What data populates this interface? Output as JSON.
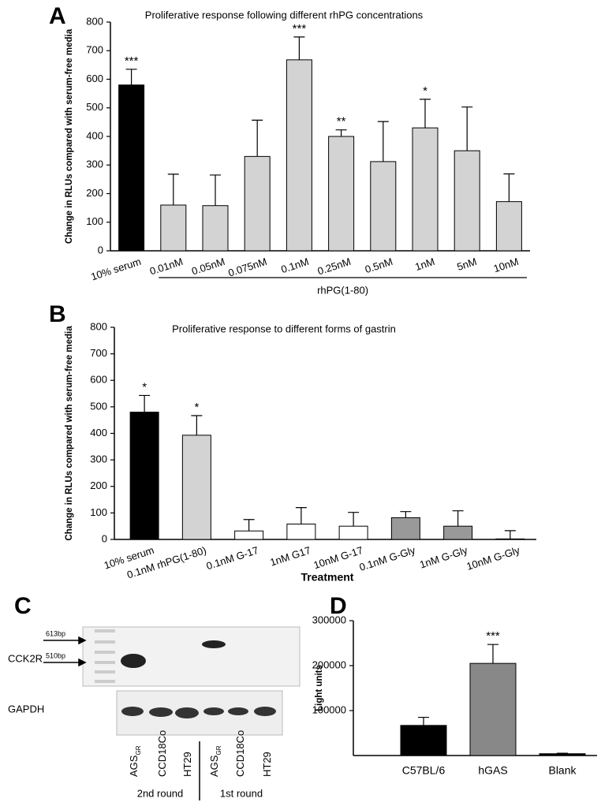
{
  "chart_data": [
    {
      "type": "bar",
      "panel": "A",
      "title": "Proliferative response following different rhPG concentrations",
      "ylabel": "Change in RLUs compared with serum-free media",
      "categories": [
        "10% serum",
        "0.01nM",
        "0.05nM",
        "0.075nM",
        "0.1nM",
        "0.25nM",
        "0.5nM",
        "1nM",
        "5nM",
        "10nM"
      ],
      "values": [
        580,
        160,
        158,
        330,
        668,
        400,
        312,
        430,
        350,
        172
      ],
      "errors": [
        55,
        108,
        107,
        127,
        80,
        23,
        140,
        100,
        153,
        97
      ],
      "colors": [
        "#000000",
        "#d3d3d3",
        "#d3d3d3",
        "#d3d3d3",
        "#d3d3d3",
        "#d3d3d3",
        "#d3d3d3",
        "#d3d3d3",
        "#d3d3d3",
        "#d3d3d3"
      ],
      "significance": [
        "***",
        null,
        null,
        null,
        "***",
        "**",
        null,
        "*",
        null,
        null
      ],
      "group_label": "rhPG(1-80)",
      "ylim": [
        0,
        800
      ],
      "yticks": [
        0,
        100,
        200,
        300,
        400,
        500,
        600,
        700,
        800
      ]
    },
    {
      "type": "bar",
      "panel": "B",
      "title": "Proliferative response to different forms of gastrin",
      "ylabel": "Change in RLUs compared with serum-free media",
      "xlabel": "Treatment",
      "categories": [
        "10% serum",
        "0.1nM rhPG(1-80)",
        "0.1nM G-17",
        "1nM G17",
        "10nM G-17",
        "0.1nM G-Gly",
        "1nM G-Gly",
        "10nM G-Gly"
      ],
      "values": [
        480,
        393,
        32,
        58,
        50,
        82,
        50,
        2
      ],
      "errors": [
        63,
        74,
        43,
        62,
        52,
        23,
        58,
        31
      ],
      "colors": [
        "#000000",
        "#d3d3d3",
        "#ffffff",
        "#ffffff",
        "#ffffff",
        "#999999",
        "#999999",
        "#999999"
      ],
      "significance": [
        "*",
        "*",
        null,
        null,
        null,
        null,
        null,
        null
      ],
      "ylim": [
        0,
        800
      ],
      "yticks": [
        0,
        100,
        200,
        300,
        400,
        500,
        600,
        700,
        800
      ]
    },
    {
      "type": "bar",
      "panel": "D",
      "ylabel": "Light units",
      "categories": [
        "C57BL/6",
        "hGAS",
        "Blank"
      ],
      "values": [
        67000,
        205000,
        4000
      ],
      "errors": [
        18000,
        42000,
        1000
      ],
      "colors": [
        "#000000",
        "#888888",
        "#000000"
      ],
      "significance": [
        null,
        "***",
        null
      ],
      "ylim": [
        0,
        300000
      ],
      "yticks": [
        100000,
        200000,
        300000
      ]
    }
  ],
  "gel": {
    "panel": "C",
    "rows": [
      "CCK2R",
      "GAPDH"
    ],
    "markers": [
      "613bp",
      "510bp"
    ],
    "lanes": [
      {
        "text": "AGS",
        "sub": "GR"
      },
      {
        "text": "CCD18Co"
      },
      {
        "text": "HT29"
      },
      {
        "text": "AGS",
        "sub": "GR"
      },
      {
        "text": "CCD18Co"
      },
      {
        "text": "HT29"
      }
    ],
    "groups": [
      "2nd round",
      "1st round"
    ]
  }
}
